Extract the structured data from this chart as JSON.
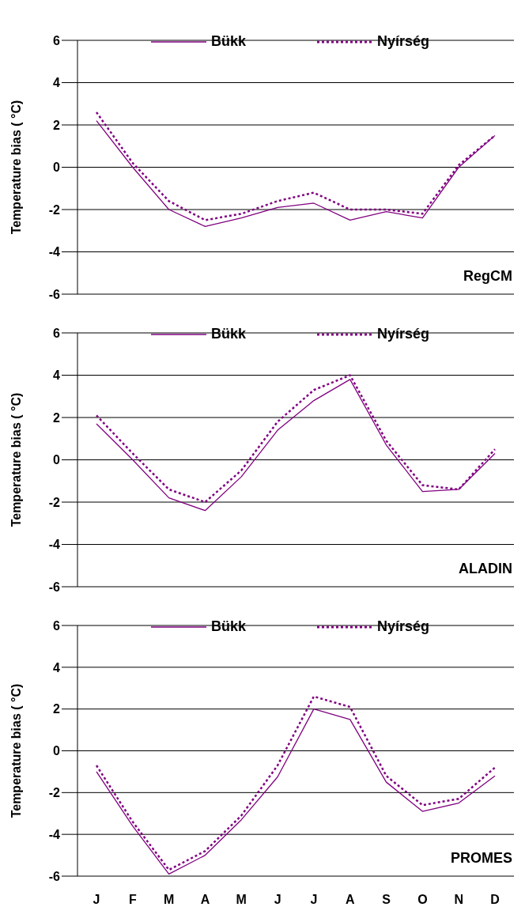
{
  "chart_data": [
    {
      "type": "line",
      "ylabel": "Temperature bias ( °C)",
      "categories": [
        null,
        null,
        null,
        null,
        null,
        null,
        null,
        null,
        null,
        null,
        null,
        null
      ],
      "ylim": [
        -6,
        6
      ],
      "yticks": [
        -6,
        -4,
        -2,
        0,
        2,
        4,
        6
      ],
      "grid": "y",
      "legend": "top",
      "marker": "none",
      "tick_labels": "y",
      "annotations": [
        "RegCM"
      ],
      "series": [
        {
          "name": "Bükk",
          "color": "#800080",
          "line_style": "solid",
          "values": [
            2.2,
            0.0,
            -2.0,
            -2.8,
            -2.4,
            -1.9,
            -1.7,
            -2.5,
            -2.1,
            -2.4,
            0.0,
            1.5
          ]
        },
        {
          "name": "Nyírség",
          "color": "#800080",
          "line_style": "dotted",
          "values": [
            2.6,
            0.2,
            -1.6,
            -2.5,
            -2.2,
            -1.6,
            -1.2,
            -2.0,
            -2.0,
            -2.2,
            0.1,
            1.5
          ]
        }
      ]
    },
    {
      "type": "line",
      "ylabel": "Temperature bias ( °C)",
      "categories": [
        null,
        null,
        null,
        null,
        null,
        null,
        null,
        null,
        null,
        null,
        null,
        null
      ],
      "ylim": [
        -6,
        6
      ],
      "yticks": [
        -6,
        -4,
        -2,
        0,
        2,
        4,
        6
      ],
      "grid": "y",
      "legend": "top",
      "marker": "none",
      "tick_labels": "y",
      "annotations": [
        "ALADIN"
      ],
      "series": [
        {
          "name": "Bükk",
          "color": "#800080",
          "line_style": "solid",
          "values": [
            1.7,
            0.0,
            -1.8,
            -2.4,
            -0.8,
            1.4,
            2.8,
            3.8,
            0.7,
            -1.5,
            -1.4,
            0.3
          ]
        },
        {
          "name": "Nyírség",
          "color": "#800080",
          "line_style": "dotted",
          "values": [
            2.1,
            0.3,
            -1.4,
            -2.0,
            -0.5,
            1.8,
            3.3,
            4.0,
            0.9,
            -1.2,
            -1.4,
            0.5
          ]
        }
      ]
    },
    {
      "type": "line",
      "ylabel": "Temperature bias ( °C)",
      "categories": [
        "J",
        "F",
        "M",
        "A",
        "M",
        "J",
        "J",
        "A",
        "S",
        "O",
        "N",
        "D"
      ],
      "ylim": [
        -6,
        6
      ],
      "yticks": [
        -6,
        -4,
        -2,
        0,
        2,
        4,
        6
      ],
      "grid": "y",
      "legend": "top",
      "marker": "none",
      "annotations": [
        "PROMES"
      ],
      "series": [
        {
          "name": "Bükk",
          "color": "#800080",
          "line_style": "solid",
          "values": [
            -1.0,
            -3.6,
            -5.9,
            -5.0,
            -3.3,
            -1.25,
            2.0,
            1.5,
            -1.5,
            -2.9,
            -2.5,
            -1.2
          ]
        },
        {
          "name": "Nyírség",
          "color": "#800080",
          "line_style": "dotted",
          "values": [
            -0.7,
            -3.4,
            -5.7,
            -4.8,
            -3.1,
            -0.7,
            2.6,
            2.1,
            -1.2,
            -2.6,
            -2.3,
            -0.8
          ]
        }
      ]
    }
  ]
}
